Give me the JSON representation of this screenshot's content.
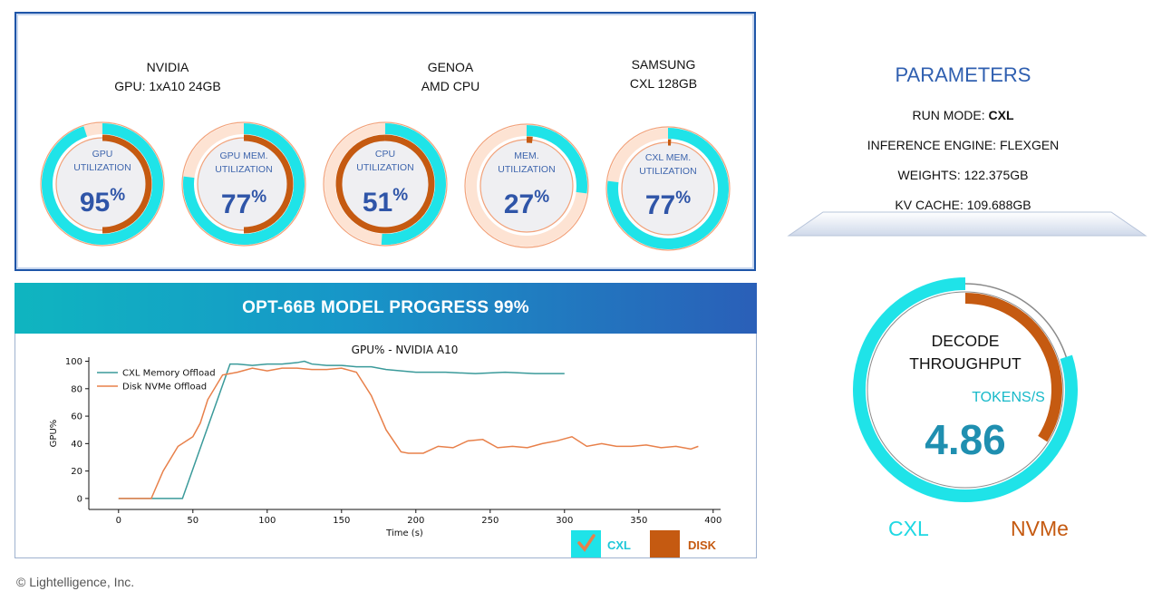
{
  "hardware": {
    "nvidia": {
      "line1": "NVIDIA",
      "line2": "GPU: 1xA10 24GB"
    },
    "genoa": {
      "line1": "GENOA",
      "line2": "AMD CPU"
    },
    "samsung": {
      "line1": "SAMSUNG",
      "line2": "CXL 128GB"
    }
  },
  "gauges": [
    {
      "label1": "GPU",
      "label2": "UTILIZATION",
      "value": "95",
      "unit": "%",
      "cyan": 0.95,
      "orange": 0.5
    },
    {
      "label1": "GPU MEM.",
      "label2": "UTILIZATION",
      "value": "77",
      "unit": "%",
      "cyan": 0.77,
      "orange": 0.5
    },
    {
      "label1": "CPU",
      "label2": "UTILIZATION",
      "value": "51",
      "unit": "%",
      "cyan": 0.51,
      "orange": 1.0
    },
    {
      "label1": "MEM.",
      "label2": "UTILIZATION",
      "value": "27",
      "unit": "%",
      "cyan": 0.27,
      "orange": 0.02
    },
    {
      "label1": "CXL MEM.",
      "label2": "UTILIZATION",
      "value": "77",
      "unit": "%",
      "cyan": 0.77,
      "orange": 0.01
    }
  ],
  "progress": {
    "text": "OPT-66B MODEL PROGRESS 99%",
    "value": 0.99
  },
  "parameters": {
    "title": "PARAMETERS",
    "run_mode_label": "RUN MODE: ",
    "run_mode_value": "CXL",
    "engine": "INFERENCE ENGINE: FLEXGEN",
    "weights": "WEIGHTS: 122.375GB",
    "kv_cache": "KV CACHE: 109.688GB"
  },
  "throughput": {
    "title1": "DECODE",
    "title2": "THROUGHPUT",
    "unit": "TOKENS/S",
    "value": "4.86",
    "cxl_label": "CXL",
    "nvme_label": "NVMe",
    "cxl_fraction": 0.8,
    "nvme_fraction": 0.34
  },
  "legend_toggles": {
    "cxl": "CXL",
    "disk": "DISK"
  },
  "colors": {
    "cyan": "#1fe3e8",
    "orange": "#c55a11",
    "blue_text": "#2f55a8",
    "teal_line": "#3a9a9a",
    "orange_line": "#e8804a"
  },
  "footer": "© Lightelligence, Inc.",
  "chart_data": {
    "type": "line",
    "title": "GPU% - NVIDIA A10",
    "xlabel": "Time (s)",
    "ylabel": "GPU%",
    "xlim": [
      -20,
      405
    ],
    "ylim": [
      -8,
      103
    ],
    "xticks": [
      0,
      50,
      100,
      150,
      200,
      250,
      300,
      350,
      400
    ],
    "yticks": [
      0,
      20,
      40,
      60,
      80,
      100
    ],
    "legend_position": "top-left",
    "series": [
      {
        "name": "CXL Memory Offload",
        "color": "#3a9a9a",
        "x": [
          0,
          43,
          75,
          80,
          90,
          100,
          110,
          120,
          125,
          130,
          140,
          150,
          160,
          170,
          180,
          190,
          200,
          220,
          240,
          260,
          280,
          300
        ],
        "y": [
          0,
          0,
          98,
          98,
          97,
          98,
          98,
          99,
          100,
          98,
          97,
          97,
          96,
          96,
          94,
          93,
          92,
          92,
          91,
          92,
          91,
          91
        ]
      },
      {
        "name": "Disk NVMe Offload",
        "color": "#e8804a",
        "x": [
          0,
          22,
          30,
          40,
          50,
          55,
          60,
          70,
          80,
          90,
          100,
          110,
          120,
          130,
          140,
          150,
          160,
          170,
          180,
          190,
          195,
          205,
          215,
          225,
          235,
          245,
          255,
          265,
          275,
          285,
          295,
          305,
          315,
          325,
          335,
          345,
          355,
          365,
          375,
          385,
          390
        ],
        "y": [
          0,
          0,
          20,
          38,
          45,
          55,
          72,
          90,
          92,
          95,
          93,
          95,
          95,
          94,
          94,
          95,
          92,
          75,
          50,
          34,
          33,
          33,
          38,
          37,
          42,
          43,
          37,
          38,
          37,
          40,
          42,
          45,
          38,
          40,
          38,
          38,
          39,
          37,
          38,
          36,
          38
        ]
      }
    ]
  }
}
